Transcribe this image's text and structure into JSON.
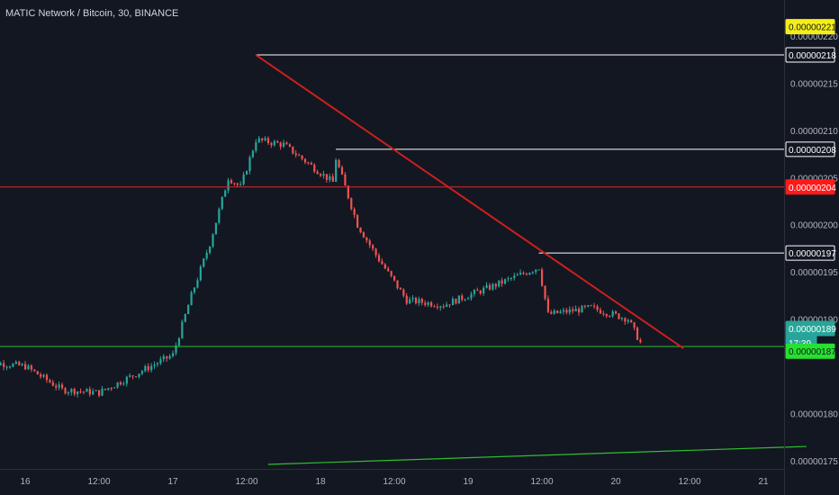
{
  "header": {
    "title": "MATIC Network / Bitcoin, 30, BINANCE"
  },
  "colors": {
    "background": "#131722",
    "up": "#26a69a",
    "down": "#ef5350",
    "trendline": "#cc1f1f",
    "support_line": "#2fbf2f",
    "resistance_line": "#d92b2b",
    "highlight_label": "#f5ee16",
    "green_label": "#26e22f",
    "teal_label": "#26a69a",
    "axis_text": "#b2b5be"
  },
  "chart_data": {
    "type": "candlestick",
    "title": "MATIC Network / Bitcoin, 30, BINANCE",
    "xlabel": "",
    "ylabel": "",
    "ylim": [
      1.746e-06,
      2.222e-06
    ],
    "y_ticks": [
      "0.00000220",
      "0.00000215",
      "0.00000210",
      "0.00000205",
      "0.00000200",
      "0.00000195",
      "0.00000190",
      "0.00000180",
      "0.00000175"
    ],
    "x_ticks": [
      "16",
      "12:00",
      "17",
      "12:00",
      "18",
      "12:00",
      "19",
      "12:00",
      "20",
      "12:00",
      "21"
    ],
    "price_labels": [
      {
        "text": "0.00000221",
        "value": 2.21e-06,
        "style": "yellow"
      },
      {
        "text": "0.00000218",
        "value": 2.18e-06,
        "style": "white"
      },
      {
        "text": "0.00000208",
        "value": 2.08e-06,
        "style": "white"
      },
      {
        "text": "0.00000204",
        "value": 2.04e-06,
        "style": "red"
      },
      {
        "text": "0.00000197",
        "value": 1.97e-06,
        "style": "white"
      },
      {
        "text": "0.00000189",
        "value": 1.89e-06,
        "style": "teal"
      },
      {
        "text": "17:39",
        "value": 1.875e-06,
        "style": "teal"
      },
      {
        "text": "0.00000187",
        "value": 1.866e-06,
        "style": "green"
      }
    ],
    "horizontal_lines": [
      {
        "value": 2.04e-06,
        "style": "red",
        "from": "16"
      },
      {
        "value": 1.871e-06,
        "style": "green",
        "from": "16"
      },
      {
        "value": 2.18e-06,
        "style": "white",
        "from": "17 13:30"
      },
      {
        "value": 2.08e-06,
        "style": "white",
        "from": "18 02:30"
      },
      {
        "value": 1.97e-06,
        "style": "white",
        "from": "19 11:30"
      }
    ],
    "trendlines": [
      {
        "style": "red",
        "from": [
          "17 13:30",
          2.18e-06
        ],
        "to": [
          "20 11:00",
          1.869e-06
        ]
      },
      {
        "style": "green",
        "from": [
          "17 15:30",
          1.746e-06
        ],
        "to": [
          "21 07:00",
          1.765e-06
        ]
      }
    ],
    "candles_close_path": [
      [
        "15 17:00",
        1.855e-06
      ],
      [
        "16 00:00",
        1.85e-06
      ],
      [
        "16 06:00",
        1.825e-06
      ],
      [
        "16 12:00",
        1.822e-06
      ],
      [
        "16 18:00",
        1.842e-06
      ],
      [
        "17 00:00",
        1.862e-06
      ],
      [
        "17 03:00",
        1.925e-06
      ],
      [
        "17 06:00",
        1.98e-06
      ],
      [
        "17 09:00",
        2.05e-06
      ],
      [
        "17 11:00",
        2.04e-06
      ],
      [
        "17 13:30",
        2.09e-06
      ],
      [
        "17 18:00",
        2.085e-06
      ],
      [
        "18 02:00",
        2.045e-06
      ],
      [
        "18 02:30",
        2.07e-06
      ],
      [
        "18 06:00",
        2e-06
      ],
      [
        "18 09:00",
        1.968e-06
      ],
      [
        "18 14:00",
        1.92e-06
      ],
      [
        "18 20:00",
        1.915e-06
      ],
      [
        "19 04:00",
        1.935e-06
      ],
      [
        "19 11:30",
        1.955e-06
      ],
      [
        "19 13:00",
        1.905e-06
      ],
      [
        "19 20:00",
        1.912e-06
      ],
      [
        "20 02:00",
        1.9e-06
      ],
      [
        "20 04:00",
        1.875e-06
      ]
    ]
  }
}
